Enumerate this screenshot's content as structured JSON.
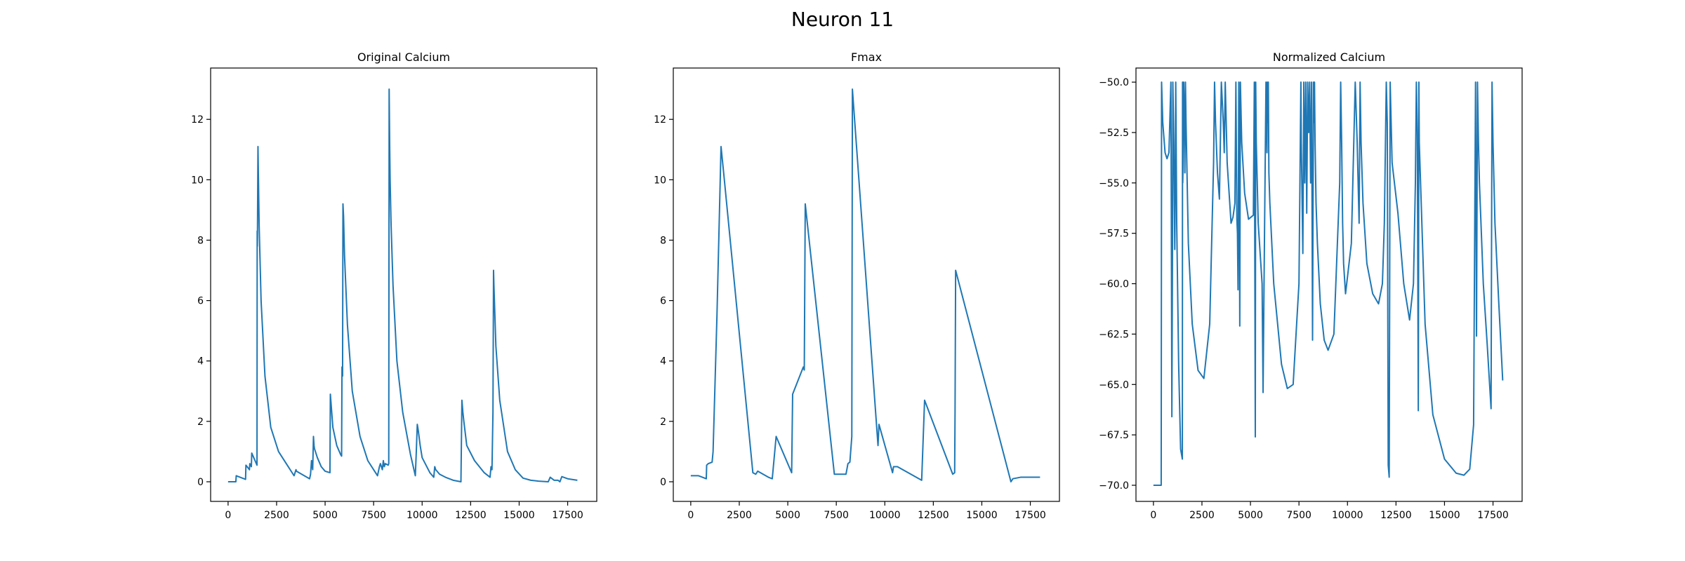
{
  "figure": {
    "suptitle": "Neuron 11"
  },
  "style": {
    "line_color": "#1f77b4",
    "axes_color": "#000000",
    "background": "#ffffff"
  },
  "chart_data": [
    {
      "type": "line",
      "title": "Original Calcium",
      "xlabel": "",
      "ylabel": "",
      "xlim": [
        -900,
        19000
      ],
      "ylim": [
        -0.65,
        13.7
      ],
      "xticks": [
        0,
        2500,
        5000,
        7500,
        10000,
        12500,
        15000,
        17500
      ],
      "yticks": [
        0,
        2,
        4,
        6,
        8,
        10,
        12
      ],
      "grid": false,
      "series": [
        {
          "x": [
            0,
            400,
            420,
            900,
            920,
            1100,
            1120,
            1200,
            1220,
            1490,
            1500,
            1510,
            1540,
            1560,
            1600,
            1700,
            1900,
            2200,
            2600,
            3000,
            3400,
            3500,
            3520,
            4200,
            4250,
            4300,
            4330,
            4360,
            4400,
            4430,
            4450,
            4600,
            4800,
            5000,
            5250,
            5270,
            5400,
            5600,
            5800,
            5850,
            5870,
            5900,
            5920,
            5950,
            6000,
            6150,
            6400,
            6800,
            7200,
            7600,
            7700,
            7800,
            7850,
            7950,
            8000,
            8050,
            8100,
            8250,
            8280,
            8300,
            8330,
            8350,
            8400,
            8500,
            8700,
            9000,
            9400,
            9650,
            9700,
            9750,
            9800,
            9900,
            10000,
            10400,
            10600,
            10650,
            10700,
            10900,
            11200,
            11600,
            12000,
            12050,
            12100,
            12150,
            12300,
            12700,
            13200,
            13500,
            13550,
            13600,
            13650,
            13680,
            13700,
            13800,
            14000,
            14400,
            14800,
            15200,
            15600,
            16000,
            16500,
            16600,
            16800,
            17000,
            17100,
            17200,
            17500,
            18000
          ],
          "y": [
            0,
            0,
            0.2,
            0.08,
            0.55,
            0.4,
            0.6,
            0.5,
            0.95,
            0.55,
            8.3,
            7.8,
            11.1,
            10.2,
            8.5,
            6.0,
            3.5,
            1.8,
            1.0,
            0.6,
            0.2,
            0.4,
            0.35,
            0.1,
            0.25,
            0.7,
            0.55,
            0.4,
            1.5,
            1.2,
            1.1,
            0.8,
            0.5,
            0.35,
            0.3,
            2.9,
            1.8,
            1.2,
            0.9,
            0.85,
            3.8,
            3.5,
            9.2,
            8.8,
            7.5,
            5.2,
            3.0,
            1.5,
            0.7,
            0.3,
            0.2,
            0.5,
            0.6,
            0.4,
            0.7,
            0.5,
            0.6,
            0.55,
            0.6,
            13.0,
            11.0,
            10.0,
            8.5,
            6.5,
            4.0,
            2.3,
            0.9,
            0.2,
            1.0,
            1.9,
            1.7,
            1.2,
            0.8,
            0.3,
            0.15,
            0.5,
            0.4,
            0.25,
            0.15,
            0.05,
            0.0,
            2.7,
            2.3,
            2.0,
            1.2,
            0.7,
            0.3,
            0.15,
            0.5,
            0.4,
            2.3,
            7.0,
            6.5,
            4.5,
            2.7,
            1.0,
            0.4,
            0.12,
            0.05,
            0.02,
            0.0,
            0.15,
            0.05,
            0.05,
            0.0,
            0.17,
            0.1,
            0.05
          ]
        }
      ]
    },
    {
      "type": "line",
      "title": "Fmax",
      "xlabel": "",
      "ylabel": "",
      "xlim": [
        -900,
        19000
      ],
      "ylim": [
        -0.65,
        13.7
      ],
      "xticks": [
        0,
        2500,
        5000,
        7500,
        10000,
        12500,
        15000,
        17500
      ],
      "yticks": [
        0,
        2,
        4,
        6,
        8,
        10,
        12
      ],
      "grid": false,
      "series": [
        {
          "x": [
            0,
            400,
            800,
            820,
            900,
            1100,
            1150,
            1350,
            1560,
            1700,
            3200,
            3350,
            3450,
            4000,
            4200,
            4400,
            5200,
            5250,
            5800,
            5850,
            5900,
            7400,
            7600,
            8000,
            8100,
            8200,
            8300,
            8330,
            9650,
            9700,
            10400,
            10450,
            10650,
            11900,
            12050,
            13500,
            13600,
            13620,
            13650,
            16500,
            16600,
            17000,
            17500,
            18000
          ],
          "y": [
            0.2,
            0.2,
            0.1,
            0.55,
            0.6,
            0.65,
            1.0,
            5.5,
            11.1,
            10.2,
            0.3,
            0.25,
            0.35,
            0.15,
            0.1,
            1.5,
            0.3,
            2.9,
            3.8,
            3.7,
            9.2,
            0.25,
            0.25,
            0.25,
            0.6,
            0.65,
            1.5,
            13.0,
            1.2,
            1.9,
            0.3,
            0.5,
            0.5,
            0.05,
            2.7,
            0.25,
            0.3,
            2.3,
            7.0,
            0.0,
            0.1,
            0.15,
            0.15,
            0.15
          ]
        }
      ]
    },
    {
      "type": "line",
      "title": "Normalized Calcium",
      "xlabel": "",
      "ylabel": "",
      "xlim": [
        -900,
        19000
      ],
      "ylim": [
        -70.8,
        -49.3
      ],
      "xticks": [
        0,
        2500,
        5000,
        7500,
        10000,
        12500,
        15000,
        17500
      ],
      "yticks": [
        -70.0,
        -67.5,
        -65.0,
        -62.5,
        -60.0,
        -57.5,
        -55.0,
        -52.5,
        -50.0
      ],
      "ytick_labels": [
        "−70.0",
        "−67.5",
        "−65.0",
        "−62.5",
        "−60.0",
        "−57.5",
        "−55.0",
        "−52.5",
        "−50.0"
      ],
      "grid": false,
      "series": [
        {
          "x": [
            0,
            400,
            420,
            480,
            600,
            700,
            800,
            900,
            920,
            950,
            990,
            1000,
            1050,
            1100,
            1120,
            1150,
            1200,
            1300,
            1400,
            1490,
            1500,
            1510,
            1520,
            1560,
            1600,
            1620,
            1650,
            1680,
            1800,
            2000,
            2300,
            2600,
            2900,
            3100,
            3150,
            3200,
            3300,
            3400,
            3500,
            3600,
            3650,
            3700,
            3800,
            4000,
            4100,
            4200,
            4250,
            4300,
            4330,
            4360,
            4400,
            4430,
            4450,
            4480,
            4550,
            4700,
            4900,
            5150,
            5200,
            5250,
            5270,
            5300,
            5400,
            5600,
            5650,
            5700,
            5800,
            5850,
            5870,
            5900,
            5920,
            5950,
            6000,
            6200,
            6600,
            6900,
            7200,
            7500,
            7600,
            7620,
            7700,
            7750,
            7800,
            7850,
            7900,
            7950,
            8000,
            8050,
            8100,
            8150,
            8200,
            8250,
            8280,
            8300,
            8330,
            8380,
            8450,
            8600,
            8800,
            9000,
            9300,
            9600,
            9650,
            9700,
            9750,
            9800,
            9900,
            10200,
            10400,
            10500,
            10600,
            10650,
            10700,
            10800,
            11000,
            11300,
            11600,
            11800,
            11900,
            12000,
            12050,
            12100,
            12150,
            12200,
            12300,
            12600,
            12900,
            13200,
            13400,
            13500,
            13550,
            13600,
            13650,
            13680,
            13700,
            13800,
            14000,
            14400,
            15000,
            15600,
            16000,
            16300,
            16500,
            16600,
            16650,
            16700,
            16750,
            16800,
            17000,
            17200,
            17400,
            17450,
            17500,
            17600,
            17800,
            18000
          ],
          "y": [
            -70.0,
            -70.0,
            -50.0,
            -52.0,
            -53.5,
            -53.8,
            -53.5,
            -50.0,
            -56.0,
            -66.6,
            -56.0,
            -50.0,
            -53.0,
            -58.3,
            -56.0,
            -50.0,
            -57.0,
            -64.0,
            -68.2,
            -68.7,
            -50.0,
            -55.0,
            -54.5,
            -50.0,
            -52.0,
            -54.5,
            -50.0,
            -52.0,
            -58.0,
            -62.0,
            -64.3,
            -64.7,
            -62.0,
            -54.0,
            -50.0,
            -52.0,
            -54.5,
            -55.8,
            -50.0,
            -52.0,
            -53.5,
            -50.0,
            -54.0,
            -57.0,
            -56.7,
            -56.0,
            -50.0,
            -56.8,
            -57.5,
            -60.3,
            -50.0,
            -56.0,
            -62.1,
            -50.0,
            -53.0,
            -55.5,
            -56.8,
            -56.6,
            -50.0,
            -67.6,
            -50.0,
            -53.0,
            -57.0,
            -60.0,
            -65.4,
            -60.0,
            -50.0,
            -53.5,
            -50.0,
            -52.0,
            -50.0,
            -54.5,
            -56.0,
            -60.0,
            -64.0,
            -65.2,
            -65.0,
            -60.0,
            -50.0,
            -53.0,
            -58.5,
            -50.0,
            -55.0,
            -50.0,
            -56.5,
            -50.0,
            -52.5,
            -50.0,
            -55.0,
            -50.0,
            -62.8,
            -50.0,
            -52.0,
            -50.0,
            -53.0,
            -56.0,
            -58.0,
            -61.0,
            -62.8,
            -63.3,
            -62.5,
            -55.0,
            -50.0,
            -53.0,
            -57.0,
            -59.0,
            -60.5,
            -58.0,
            -50.0,
            -53.0,
            -57.0,
            -50.0,
            -53.0,
            -56.0,
            -59.0,
            -60.5,
            -61.0,
            -60.0,
            -57.0,
            -50.0,
            -52.0,
            -69.0,
            -69.6,
            -50.0,
            -54.0,
            -56.5,
            -60.0,
            -61.8,
            -60.0,
            -55.0,
            -50.0,
            -52.5,
            -66.3,
            -50.0,
            -53.0,
            -56.0,
            -62.0,
            -66.5,
            -68.7,
            -69.4,
            -69.5,
            -69.2,
            -67.0,
            -50.0,
            -62.6,
            -50.0,
            -53.0,
            -55.0,
            -60.0,
            -63.0,
            -66.2,
            -50.0,
            -53.0,
            -57.0,
            -61.0,
            -64.8
          ]
        }
      ]
    }
  ]
}
